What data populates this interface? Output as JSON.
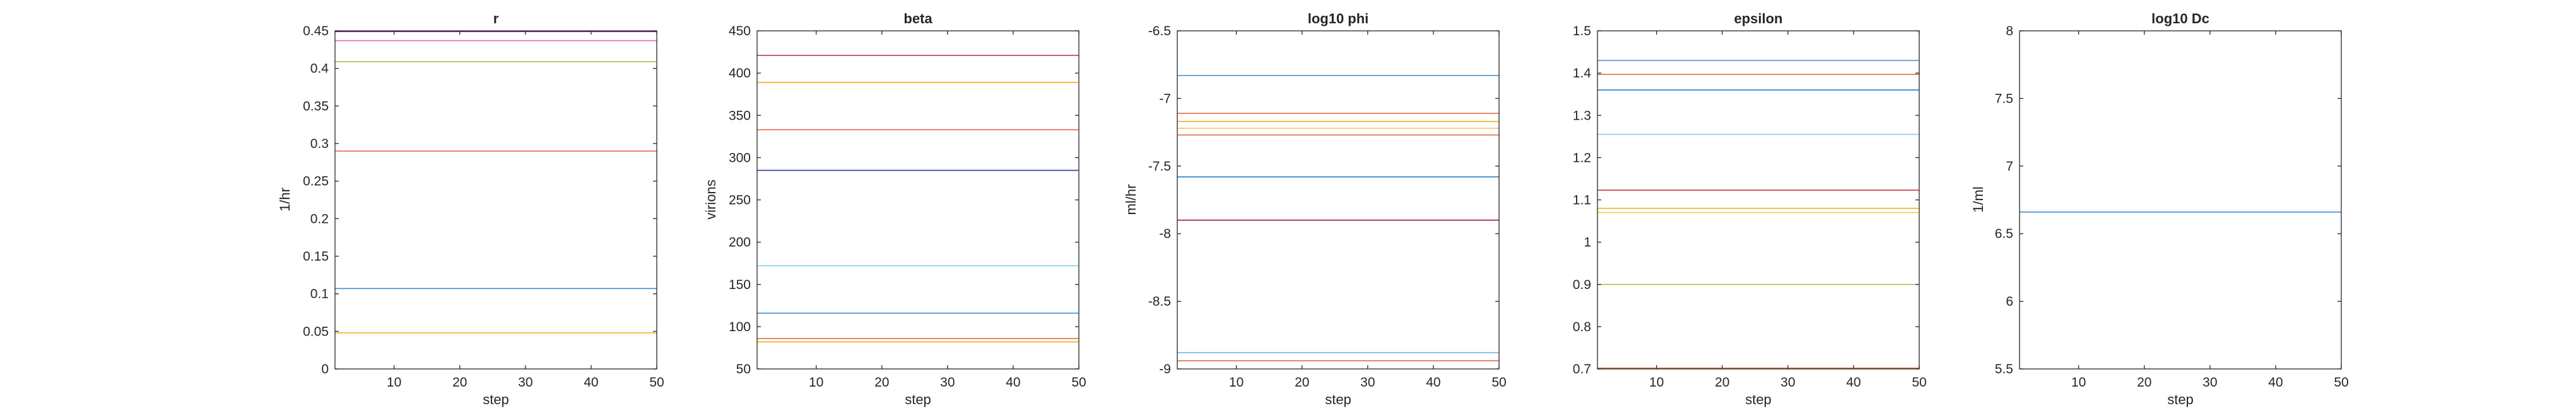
{
  "figure": {
    "panels": [
      {
        "title": "r",
        "ylabel": "1/hr",
        "xlabel": "step"
      },
      {
        "title": "beta",
        "ylabel": "virions",
        "xlabel": "step"
      },
      {
        "title": "log10 phi",
        "ylabel": "ml/hr",
        "xlabel": "step"
      },
      {
        "title": "epsilon",
        "ylabel": "",
        "xlabel": "step"
      },
      {
        "title": "log10 Dc",
        "ylabel": "1/ml",
        "xlabel": "step"
      }
    ]
  },
  "chart_data": [
    {
      "type": "line",
      "title": "r",
      "xlabel": "step",
      "ylabel": "1/hr",
      "xlim": [
        1,
        50
      ],
      "ylim": [
        0,
        0.45
      ],
      "xticks": [
        10,
        20,
        30,
        40,
        50
      ],
      "yticks": [
        0,
        0.05,
        0.1,
        0.15,
        0.2,
        0.25,
        0.3,
        0.35,
        0.4,
        0.45
      ],
      "ytick_labels": [
        "0",
        "0.05",
        "0.1",
        "0.15",
        "0.2",
        "0.25",
        "0.3",
        "0.35",
        "0.4",
        "0.45"
      ],
      "grid": false,
      "series": [
        {
          "values": [
            0.449
          ],
          "color": "#7e2f8e"
        },
        {
          "values": [
            0.437
          ],
          "color": "#e06aa8"
        },
        {
          "values": [
            0.409
          ],
          "color": "#b5b840"
        },
        {
          "values": [
            0.29
          ],
          "color": "#e26a4a"
        },
        {
          "values": [
            0.107
          ],
          "color": "#3f8ed4"
        },
        {
          "values": [
            0.048
          ],
          "color": "#edb120"
        }
      ]
    },
    {
      "type": "line",
      "title": "beta",
      "xlabel": "step",
      "ylabel": "virions",
      "xlim": [
        1,
        50
      ],
      "ylim": [
        50,
        450
      ],
      "xticks": [
        10,
        20,
        30,
        40,
        50
      ],
      "yticks": [
        50,
        100,
        150,
        200,
        250,
        300,
        350,
        400,
        450
      ],
      "ytick_labels": [
        "50",
        "100",
        "150",
        "200",
        "250",
        "300",
        "350",
        "400",
        "450"
      ],
      "grid": false,
      "series": [
        {
          "values": [
            421
          ],
          "color": "#c0394a"
        },
        {
          "values": [
            389
          ],
          "color": "#edb120"
        },
        {
          "values": [
            333
          ],
          "color": "#e26a4a"
        },
        {
          "values": [
            285
          ],
          "color": "#1f3f8f"
        },
        {
          "values": [
            172
          ],
          "color": "#7fd0e8"
        },
        {
          "values": [
            116
          ],
          "color": "#3f8ed4"
        },
        {
          "values": [
            86
          ],
          "color": "#e26a4a"
        },
        {
          "values": [
            82
          ],
          "color": "#edb120"
        }
      ]
    },
    {
      "type": "line",
      "title": "log10 phi",
      "xlabel": "step",
      "ylabel": "ml/hr",
      "xlim": [
        1,
        50
      ],
      "ylim": [
        -9,
        -6.5
      ],
      "xticks": [
        10,
        20,
        30,
        40,
        50
      ],
      "yticks": [
        -9,
        -8.5,
        -8,
        -7.5,
        -7,
        -6.5
      ],
      "ytick_labels": [
        "-9",
        "-8.5",
        "-8",
        "-7.5",
        "-7",
        "-6.5"
      ],
      "grid": false,
      "series": [
        {
          "values": [
            -6.83
          ],
          "color": "#3f8ed4"
        },
        {
          "values": [
            -7.11
          ],
          "color": "#e26a4a"
        },
        {
          "values": [
            -7.17
          ],
          "color": "#edb120"
        },
        {
          "values": [
            -7.22
          ],
          "color": "#f2c75c"
        },
        {
          "values": [
            -7.27
          ],
          "color": "#e26a4a"
        },
        {
          "values": [
            -7.58
          ],
          "color": "#2a7bbf"
        },
        {
          "values": [
            -7.9
          ],
          "color": "#a2142f"
        },
        {
          "values": [
            -8.88
          ],
          "color": "#7fb0e0"
        },
        {
          "values": [
            -8.94
          ],
          "color": "#e26a4a"
        }
      ]
    },
    {
      "type": "line",
      "title": "epsilon",
      "xlabel": "step",
      "ylabel": "",
      "xlim": [
        1,
        50
      ],
      "ylim": [
        0.7,
        1.5
      ],
      "xticks": [
        10,
        20,
        30,
        40,
        50
      ],
      "yticks": [
        0.7,
        0.8,
        0.9,
        1,
        1.1,
        1.2,
        1.3,
        1.4,
        1.5
      ],
      "ytick_labels": [
        "0.7",
        "0.8",
        "0.9",
        "1",
        "1.1",
        "1.2",
        "1.3",
        "1.4",
        "1.5"
      ],
      "grid": false,
      "series": [
        {
          "values": [
            1.43
          ],
          "color": "#3f8ed4"
        },
        {
          "values": [
            1.397
          ],
          "color": "#e26a4a"
        },
        {
          "values": [
            1.36
          ],
          "color": "#2a7bbf"
        },
        {
          "values": [
            1.255
          ],
          "color": "#7fd0e8"
        },
        {
          "values": [
            1.123
          ],
          "color": "#c0394a"
        },
        {
          "values": [
            1.08
          ],
          "color": "#edb120"
        },
        {
          "values": [
            1.07
          ],
          "color": "#f2c75c"
        },
        {
          "values": [
            0.9
          ],
          "color": "#b5b840"
        },
        {
          "values": [
            0.702
          ],
          "color": "#e26a4a"
        }
      ]
    },
    {
      "type": "line",
      "title": "log10 Dc",
      "xlabel": "step",
      "ylabel": "1/ml",
      "xlim": [
        1,
        50
      ],
      "ylim": [
        5.5,
        8
      ],
      "xticks": [
        10,
        20,
        30,
        40,
        50
      ],
      "yticks": [
        5.5,
        6,
        6.5,
        7,
        7.5,
        8
      ],
      "ytick_labels": [
        "5.5",
        "6",
        "6.5",
        "7",
        "7.5",
        "8"
      ],
      "grid": false,
      "series": [
        {
          "values": [
            6.66
          ],
          "color": "#3f8ed4"
        }
      ]
    }
  ]
}
